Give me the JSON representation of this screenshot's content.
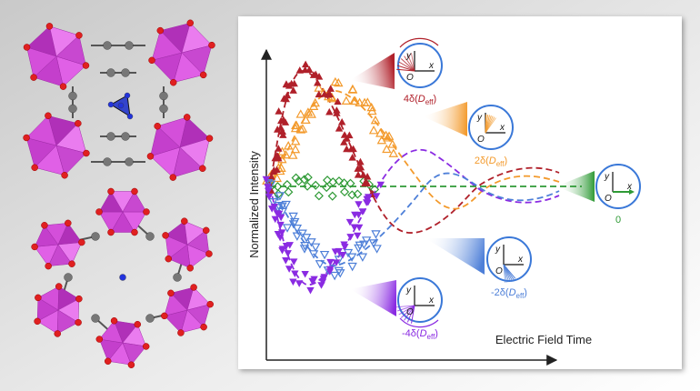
{
  "figure": {
    "y_axis_label": "Normalized Intensity",
    "x_axis_label": "Electric Field Time",
    "circle_axes": {
      "x": "x",
      "y": "y",
      "origin": "O"
    },
    "states": [
      {
        "prefix": "4δ(",
        "var": "D",
        "sub": "eff",
        "suffix": ")"
      },
      {
        "prefix": "2δ(",
        "var": "D",
        "sub": "eff",
        "suffix": ")"
      },
      {
        "prefix": "0"
      },
      {
        "prefix": "-2δ(",
        "var": "D",
        "sub": "eff",
        "suffix": ")"
      },
      {
        "prefix": "-4δ(",
        "var": "D",
        "sub": "eff",
        "suffix": ")"
      }
    ]
  }
}
